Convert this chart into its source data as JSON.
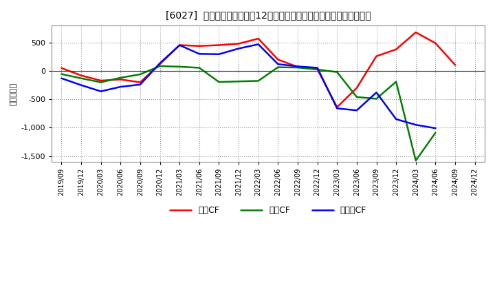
{
  "title": "[6027]  キャッシュフローの12か月移動合計の対前年同期増減額の推移",
  "ylabel": "（百万円）",
  "x_labels": [
    "2019/09",
    "2019/12",
    "2020/03",
    "2020/06",
    "2020/09",
    "2020/12",
    "2021/03",
    "2021/06",
    "2021/09",
    "2021/12",
    "2022/03",
    "2022/06",
    "2022/09",
    "2022/12",
    "2023/03",
    "2023/06",
    "2023/09",
    "2023/12",
    "2024/03",
    "2024/06",
    "2024/09",
    "2024/12"
  ],
  "operating_cf": [
    50,
    -80,
    -170,
    -150,
    -200,
    120,
    455,
    440,
    455,
    480,
    570,
    200,
    70,
    30,
    -640,
    -300,
    260,
    380,
    680,
    490,
    105,
    null
  ],
  "investing_cf": [
    -55,
    -130,
    -200,
    -120,
    -60,
    85,
    75,
    55,
    -195,
    -185,
    -175,
    65,
    60,
    25,
    -20,
    -460,
    -490,
    -190,
    -1580,
    -1090,
    null,
    null
  ],
  "free_cf": [
    -130,
    -250,
    -360,
    -280,
    -240,
    135,
    455,
    300,
    295,
    395,
    470,
    120,
    80,
    55,
    -660,
    -695,
    -380,
    -850,
    -950,
    -1010,
    null,
    null
  ],
  "operating_color": "#ff0000",
  "investing_color": "#008000",
  "free_color": "#0000ff",
  "ylim": [
    -1600,
    800
  ],
  "yticks": [
    -1500,
    -1000,
    -500,
    0,
    500
  ],
  "background_color": "#ffffff",
  "plot_bg_color": "#ffffff",
  "grid_color": "#999999",
  "legend_labels": [
    "営業CF",
    "投資CF",
    "フリーCF"
  ]
}
